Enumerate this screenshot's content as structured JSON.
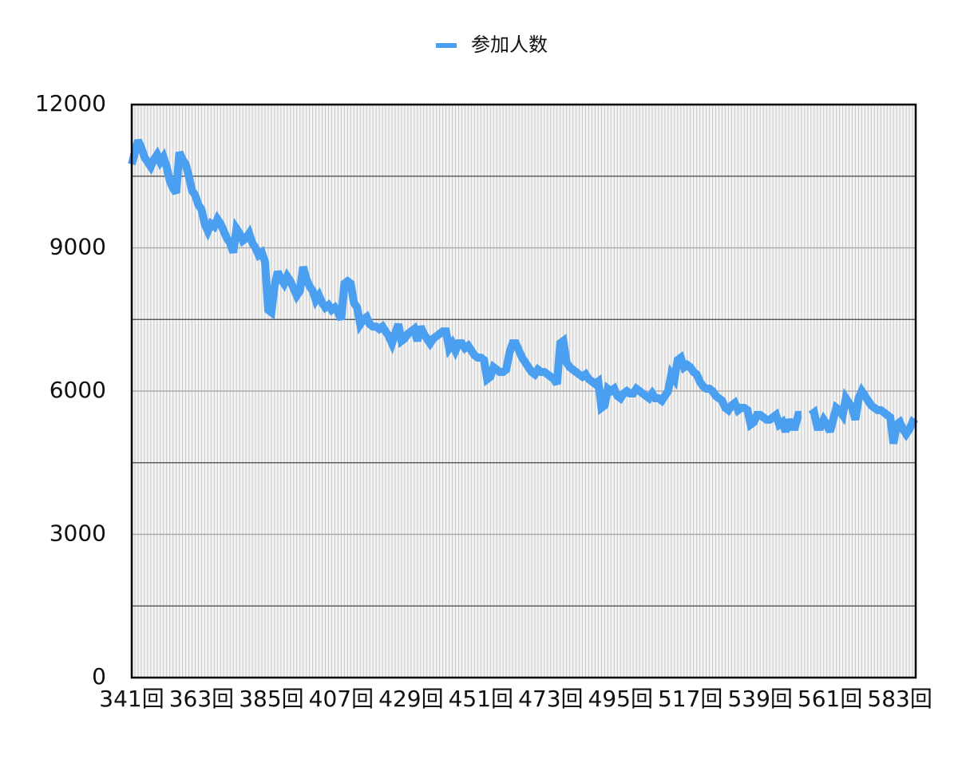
{
  "chart_data": {
    "type": "line",
    "categories": [
      "341回",
      null,
      null,
      null,
      null,
      null,
      null,
      null,
      null,
      null,
      null,
      null,
      null,
      null,
      null,
      null,
      null,
      null,
      null,
      null,
      null,
      null,
      "363回",
      null,
      null,
      null,
      null,
      null,
      null,
      null,
      null,
      null,
      null,
      null,
      null,
      null,
      null,
      null,
      null,
      null,
      null,
      null,
      null,
      null,
      "385回",
      null,
      null,
      null,
      null,
      null,
      null,
      null,
      null,
      null,
      null,
      null,
      null,
      null,
      null,
      null,
      null,
      null,
      null,
      null,
      null,
      null,
      "407回",
      null,
      null,
      null,
      null,
      null,
      null,
      null,
      null,
      null,
      null,
      null,
      null,
      null,
      null,
      null,
      null,
      null,
      null,
      null,
      null,
      null,
      "429回",
      null,
      null,
      null,
      null,
      null,
      null,
      null,
      null,
      null,
      null,
      null,
      null,
      null,
      null,
      null,
      null,
      null,
      null,
      null,
      null,
      null,
      "451回",
      null,
      null,
      null,
      null,
      null,
      null,
      null,
      null,
      null,
      null,
      null,
      null,
      null,
      null,
      null,
      null,
      null,
      null,
      null,
      null,
      null,
      "473回",
      null,
      null,
      null,
      null,
      null,
      null,
      null,
      null,
      null,
      null,
      null,
      null,
      null,
      null,
      null,
      null,
      null,
      null,
      null,
      null,
      null,
      "495回",
      null,
      null,
      null,
      null,
      null,
      null,
      null,
      null,
      null,
      null,
      null,
      null,
      null,
      null,
      null,
      null,
      null,
      null,
      null,
      null,
      null,
      "517回",
      null,
      null,
      null,
      null,
      null,
      null,
      null,
      null,
      null,
      null,
      null,
      null,
      null,
      null,
      null,
      null,
      null,
      null,
      null,
      null,
      null,
      "539回",
      null,
      null,
      null,
      null,
      null,
      null,
      null,
      null,
      null,
      null,
      null,
      null,
      null,
      null,
      null,
      null,
      null,
      null,
      null,
      null,
      null,
      "561回",
      null,
      null,
      null,
      null,
      null,
      null,
      null,
      null,
      null,
      null,
      null,
      null,
      null,
      null,
      null,
      null,
      null,
      null,
      null,
      null,
      null,
      "583回",
      null,
      null,
      null,
      null,
      null
    ],
    "series": [
      {
        "name": "参加人数",
        "color": "#4a9ff0",
        "values": [
          10750,
          11000,
          11250,
          11100,
          10900,
          10800,
          10700,
          10850,
          10950,
          10800,
          10900,
          10700,
          10400,
          10250,
          10150,
          11000,
          10850,
          10750,
          10500,
          10200,
          10100,
          9900,
          9800,
          9500,
          9350,
          9500,
          9450,
          9600,
          9500,
          9350,
          9200,
          9100,
          8900,
          9400,
          9300,
          9150,
          9200,
          9300,
          9100,
          9000,
          8850,
          8900,
          8700,
          7700,
          7650,
          8200,
          8500,
          8350,
          8250,
          8400,
          8300,
          8150,
          8000,
          8100,
          8600,
          8350,
          8200,
          8100,
          7900,
          8000,
          7850,
          7750,
          7800,
          7700,
          7750,
          7650,
          7500,
          8250,
          8300,
          8250,
          7850,
          7750,
          7400,
          7500,
          7550,
          7400,
          7350,
          7350,
          7300,
          7350,
          7250,
          7150,
          7000,
          7200,
          7400,
          7050,
          7100,
          7200,
          7250,
          7300,
          7050,
          7350,
          7200,
          7100,
          7000,
          7100,
          7150,
          7200,
          7250,
          7250,
          6900,
          7000,
          6850,
          7000,
          7000,
          6900,
          6950,
          6850,
          6750,
          6700,
          6700,
          6650,
          6250,
          6300,
          6500,
          6450,
          6400,
          6400,
          6450,
          6800,
          7000,
          7000,
          6850,
          6700,
          6600,
          6500,
          6400,
          6350,
          6450,
          6400,
          6400,
          6350,
          6300,
          6250,
          6150,
          7000,
          7050,
          6600,
          6500,
          6450,
          6400,
          6350,
          6300,
          6350,
          6250,
          6200,
          6150,
          6200,
          5650,
          5700,
          6050,
          6000,
          6050,
          5900,
          5850,
          5950,
          6000,
          5950,
          5950,
          6050,
          6000,
          5950,
          5900,
          5850,
          5950,
          5850,
          5850,
          5800,
          5900,
          6000,
          6350,
          6250,
          6650,
          6700,
          6500,
          6550,
          6500,
          6400,
          6350,
          6200,
          6100,
          6050,
          6050,
          6000,
          5900,
          5850,
          5800,
          5650,
          5600,
          5700,
          5750,
          5600,
          5650,
          5650,
          5600,
          5300,
          5350,
          5500,
          5500,
          5450,
          5400,
          5400,
          5450,
          5500,
          5300,
          5350,
          5150,
          5400,
          5250,
          5250,
          5500,
          5500,
          null,
          null,
          5500,
          5550,
          5250,
          5250,
          5400,
          5300,
          5150,
          5400,
          5650,
          5600,
          5500,
          5850,
          5750,
          5650,
          5400,
          5850,
          6000,
          5900,
          5800,
          5700,
          5650,
          5600,
          5600,
          5550,
          5500,
          5450,
          4900,
          5300,
          5350,
          5200,
          5100,
          5200,
          5350,
          5300
        ]
      }
    ],
    "ylim": [
      0,
      12000
    ],
    "yticks": [
      0,
      3000,
      6000,
      9000,
      12000
    ],
    "grid": true,
    "legend": "top"
  }
}
